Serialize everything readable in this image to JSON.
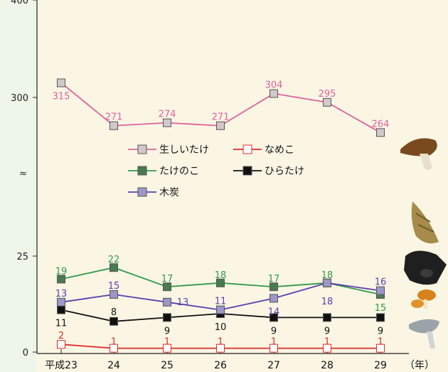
{
  "chart_data": {
    "type": "line",
    "x": [
      "平成23",
      "24",
      "25",
      "26",
      "27",
      "28",
      "29"
    ],
    "x_unit": "（年）",
    "y_tick_labels": [
      "0",
      "25",
      "300",
      "400"
    ],
    "axis_break_symbol": "≈",
    "series": [
      {
        "name": "生しいたけ",
        "color": "#e0609c",
        "marker": "filled-square",
        "marker_color": "#cfc9cc",
        "values": [
          315,
          271,
          274,
          271,
          304,
          295,
          264
        ]
      },
      {
        "name": "なめこ",
        "color": "#e02a2a",
        "marker": "hollow-square",
        "marker_color": "#ffffff",
        "values": [
          2,
          1,
          1,
          1,
          1,
          1,
          1
        ]
      },
      {
        "name": "たけのこ",
        "color": "#2f9a48",
        "marker": "filled-square",
        "marker_color": "#4a7a52",
        "values": [
          19,
          22,
          17,
          18,
          17,
          18,
          15
        ]
      },
      {
        "name": "ひらたけ",
        "color": "#111111",
        "marker": "filled-square",
        "marker_color": "#111111",
        "values": [
          11,
          8,
          9,
          10,
          9,
          9,
          9
        ]
      },
      {
        "name": "木炭",
        "color": "#5a3fb0",
        "marker": "filled-square",
        "marker_color": "#9b97c8",
        "values": [
          13,
          15,
          13,
          11,
          14,
          18,
          16
        ]
      }
    ],
    "legend": {
      "placement": "center"
    },
    "grid": false
  }
}
